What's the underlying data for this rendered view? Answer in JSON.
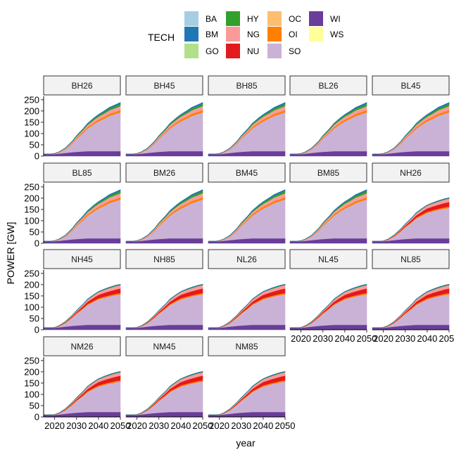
{
  "chart_data": {
    "type": "area",
    "stacked": true,
    "ylabel": "POWER [GW]",
    "xlabel": "year",
    "x_ticks": [
      2020,
      2030,
      2040,
      2050
    ],
    "x_range": [
      2015,
      2050
    ],
    "y_ticks": [
      0,
      50,
      100,
      150,
      200,
      250
    ],
    "y_range": [
      0,
      265
    ],
    "grid": false,
    "legend": {
      "title": "TECH",
      "placement": "top",
      "entries": [
        {
          "name": "BA",
          "color": "#a6cee3"
        },
        {
          "name": "BM",
          "color": "#1f78b4"
        },
        {
          "name": "GO",
          "color": "#b2df8a"
        },
        {
          "name": "HY",
          "color": "#33a02c"
        },
        {
          "name": "NG",
          "color": "#fb9a99"
        },
        {
          "name": "NU",
          "color": "#e31a1c"
        },
        {
          "name": "OC",
          "color": "#fdbf6f"
        },
        {
          "name": "OI",
          "color": "#ff7f00"
        },
        {
          "name": "SO",
          "color": "#cab2d6"
        },
        {
          "name": "WI",
          "color": "#6a3d9a"
        },
        {
          "name": "WS",
          "color": "#ffff99"
        }
      ]
    },
    "years": [
      2015,
      2018,
      2020,
      2022,
      2025,
      2028,
      2030,
      2033,
      2035,
      2038,
      2040,
      2043,
      2045,
      2048,
      2050
    ],
    "profiles": {
      "H": {
        "WI": [
          9,
          9,
          9,
          11,
          14,
          17,
          19,
          21,
          22,
          22,
          22,
          22,
          22,
          22,
          22
        ],
        "SO": [
          0,
          0,
          0,
          4,
          16,
          36,
          52,
          72,
          88,
          103,
          113,
          121,
          126,
          132,
          135
        ],
        "OI": [
          0,
          0,
          1,
          1,
          2,
          3,
          3,
          4,
          4,
          5,
          5,
          5,
          5,
          6,
          6
        ],
        "NU": [
          0,
          0,
          0,
          1,
          2,
          4,
          5,
          8,
          10,
          13,
          15,
          17,
          18,
          19,
          20
        ],
        "NG": [
          0,
          0,
          1,
          1,
          2,
          4,
          5,
          7,
          9,
          11,
          12,
          13,
          14,
          15,
          15
        ],
        "HY": [
          0,
          0,
          0,
          0,
          1,
          1,
          1,
          1,
          2,
          2,
          2,
          2,
          2,
          2,
          2
        ],
        "BM": [
          0,
          0,
          0,
          0,
          0,
          0,
          1,
          1,
          1,
          1,
          1,
          2,
          2,
          2,
          2
        ]
      },
      "L": {
        "WI": [
          9,
          9,
          9,
          11,
          14,
          17,
          19,
          21,
          22,
          22,
          22,
          22,
          22,
          22,
          22
        ],
        "SO": [
          0,
          0,
          0,
          4,
          16,
          38,
          58,
          82,
          100,
          120,
          132,
          146,
          156,
          166,
          172
        ],
        "OI": [
          0,
          0,
          1,
          1,
          2,
          3,
          4,
          5,
          6,
          7,
          8,
          8,
          9,
          9,
          10
        ],
        "NU": [
          0,
          0,
          0,
          0,
          0,
          0,
          0,
          0,
          0,
          0,
          0,
          0,
          0,
          0,
          0
        ],
        "NG": [
          0,
          0,
          1,
          2,
          3,
          5,
          6,
          8,
          10,
          12,
          13,
          15,
          16,
          17,
          18
        ],
        "HY": [
          0,
          0,
          1,
          1,
          1,
          2,
          3,
          4,
          5,
          6,
          7,
          8,
          9,
          10,
          11
        ],
        "BM": [
          0,
          0,
          0,
          0,
          1,
          1,
          1,
          2,
          2,
          3,
          3,
          4,
          4,
          5,
          5
        ]
      }
    },
    "panels": [
      {
        "name": "BH26",
        "profile": "L"
      },
      {
        "name": "BH45",
        "profile": "L"
      },
      {
        "name": "BH85",
        "profile": "L"
      },
      {
        "name": "BL26",
        "profile": "L"
      },
      {
        "name": "BL45",
        "profile": "L"
      },
      {
        "name": "BL85",
        "profile": "L"
      },
      {
        "name": "BM26",
        "profile": "L"
      },
      {
        "name": "BM45",
        "profile": "L"
      },
      {
        "name": "BM85",
        "profile": "L"
      },
      {
        "name": "NH26",
        "profile": "H"
      },
      {
        "name": "NH45",
        "profile": "H"
      },
      {
        "name": "NH85",
        "profile": "H"
      },
      {
        "name": "NL26",
        "profile": "H"
      },
      {
        "name": "NL45",
        "profile": "H"
      },
      {
        "name": "NL85",
        "profile": "H"
      },
      {
        "name": "NM26",
        "profile": "H"
      },
      {
        "name": "NM45",
        "profile": "H"
      },
      {
        "name": "NM85",
        "profile": "H"
      }
    ]
  }
}
